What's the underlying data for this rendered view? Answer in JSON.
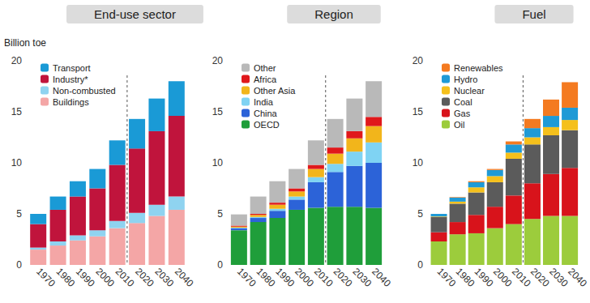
{
  "chart_data": [
    {
      "type": "bar",
      "title": "End-use sector",
      "ylabel": "Billion toe",
      "stacked": true,
      "grid": false,
      "legend": "top-left",
      "categories": [
        "1970",
        "1980",
        "1990",
        "2000",
        "2010",
        "2020",
        "2030",
        "2040"
      ],
      "ylim": [
        0,
        20
      ],
      "yticks": [
        0,
        5,
        10,
        15,
        20
      ],
      "series": [
        {
          "name": "Buildings",
          "color": "#f4a6a6",
          "values": [
            1.5,
            1.9,
            2.4,
            2.8,
            3.6,
            4.1,
            4.8,
            5.4
          ]
        },
        {
          "name": "Non-combusted",
          "color": "#8fd3f0",
          "values": [
            0.2,
            0.4,
            0.5,
            0.6,
            0.7,
            1.0,
            1.1,
            1.3
          ]
        },
        {
          "name": "Industry*",
          "color": "#c0143c",
          "values": [
            2.3,
            3.1,
            3.8,
            4.1,
            5.5,
            6.3,
            7.2,
            7.9
          ]
        },
        {
          "name": "Transport",
          "color": "#1a9ad6",
          "values": [
            1.0,
            1.3,
            1.5,
            1.9,
            2.4,
            2.9,
            3.2,
            3.4
          ]
        }
      ]
    },
    {
      "type": "bar",
      "title": "Region",
      "stacked": true,
      "grid": false,
      "legend": "top-left",
      "categories": [
        "1970",
        "1980",
        "1990",
        "2000",
        "2010",
        "2020",
        "2030",
        "2040"
      ],
      "ylim": [
        0,
        20
      ],
      "yticks": [
        0,
        5,
        10,
        15,
        20
      ],
      "series": [
        {
          "name": "OECD",
          "color": "#1f9e3a",
          "values": [
            3.4,
            4.2,
            4.6,
            5.4,
            5.6,
            5.7,
            5.7,
            5.6
          ]
        },
        {
          "name": "China",
          "color": "#2c63d8",
          "values": [
            0.2,
            0.4,
            0.7,
            1.0,
            2.5,
            3.4,
            4.0,
            4.4
          ]
        },
        {
          "name": "India",
          "color": "#7fd3f3",
          "values": [
            0.05,
            0.1,
            0.2,
            0.3,
            0.5,
            0.8,
            1.4,
            2.0
          ]
        },
        {
          "name": "Other Asia",
          "color": "#f2b51b",
          "values": [
            0.1,
            0.2,
            0.4,
            0.5,
            0.8,
            1.0,
            1.3,
            1.6
          ]
        },
        {
          "name": "Africa",
          "color": "#e0181b",
          "values": [
            0.1,
            0.1,
            0.2,
            0.3,
            0.4,
            0.6,
            0.7,
            0.9
          ]
        },
        {
          "name": "Other",
          "color": "#b9b9b9",
          "values": [
            1.1,
            1.7,
            2.1,
            1.9,
            2.4,
            2.8,
            3.2,
            3.5
          ]
        }
      ]
    },
    {
      "type": "bar",
      "title": "Fuel",
      "stacked": true,
      "grid": false,
      "legend": "top-left",
      "categories": [
        "1970",
        "1980",
        "1990",
        "2000",
        "2010",
        "2020",
        "2030",
        "2040"
      ],
      "ylim": [
        0,
        20
      ],
      "yticks": [
        0,
        5,
        10,
        15,
        20
      ],
      "series": [
        {
          "name": "Oil",
          "color": "#9ccc3c",
          "values": [
            2.3,
            3.0,
            3.1,
            3.6,
            4.0,
            4.5,
            4.8,
            4.8
          ]
        },
        {
          "name": "Gas",
          "color": "#d8131b",
          "values": [
            0.9,
            1.2,
            1.8,
            2.1,
            2.8,
            3.5,
            4.1,
            4.7
          ]
        },
        {
          "name": "Coal",
          "color": "#5b5b5b",
          "values": [
            1.5,
            1.8,
            2.2,
            2.4,
            3.6,
            3.8,
            3.8,
            3.7
          ]
        },
        {
          "name": "Nuclear",
          "color": "#f5c01c",
          "values": [
            0.05,
            0.2,
            0.5,
            0.6,
            0.6,
            0.7,
            0.8,
            1.0
          ]
        },
        {
          "name": "Hydro",
          "color": "#1f9ad6",
          "values": [
            0.25,
            0.4,
            0.5,
            0.6,
            0.8,
            0.9,
            1.1,
            1.2
          ]
        },
        {
          "name": "Renewables",
          "color": "#f47a20",
          "values": [
            0.0,
            0.05,
            0.1,
            0.1,
            0.3,
            0.9,
            1.6,
            2.5
          ]
        }
      ]
    }
  ]
}
